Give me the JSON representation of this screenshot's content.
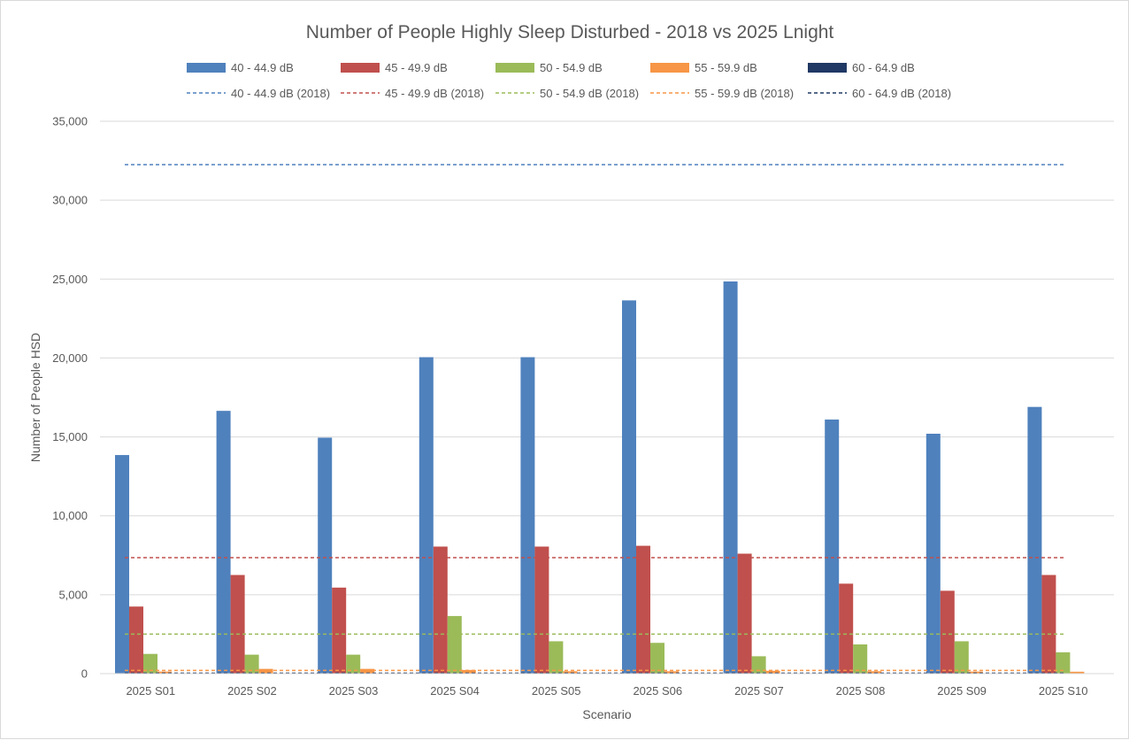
{
  "chart_data": {
    "type": "bar",
    "title": "Number of People Highly Sleep Disturbed - 2018 vs 2025 Lnight",
    "xlabel": "Scenario",
    "ylabel": "Number of People HSD",
    "ylim": [
      0,
      35000
    ],
    "yticks": [
      0,
      5000,
      10000,
      15000,
      20000,
      25000,
      30000,
      35000
    ],
    "ytick_labels": [
      "0",
      "5,000",
      "10,000",
      "15,000",
      "20,000",
      "25,000",
      "30,000",
      "35,000"
    ],
    "grid": true,
    "legend_position": "top",
    "categories": [
      "2025 S01",
      "2025 S02",
      "2025 S03",
      "2025 S04",
      "2025 S05",
      "2025 S06",
      "2025 S07",
      "2025 S08",
      "2025 S09",
      "2025 S10"
    ],
    "series": [
      {
        "name": "40 - 44.9 dB",
        "color": "#4F81BD",
        "values": [
          13850,
          16650,
          14950,
          20050,
          20050,
          23650,
          24850,
          16100,
          15200,
          16900
        ]
      },
      {
        "name": "45 - 49.9 dB",
        "color": "#C0504D",
        "values": [
          4250,
          6250,
          5450,
          8050,
          8050,
          8100,
          7600,
          5700,
          5250,
          6250
        ]
      },
      {
        "name": "50 - 54.9 dB",
        "color": "#9BBB59",
        "values": [
          1250,
          1200,
          1200,
          3650,
          2050,
          1950,
          1100,
          1850,
          2050,
          1350
        ]
      },
      {
        "name": "55 - 59.9 dB",
        "color": "#F79646",
        "values": [
          130,
          300,
          300,
          230,
          150,
          150,
          180,
          150,
          130,
          120
        ]
      },
      {
        "name": "60 - 64.9 dB",
        "color": "#1F3864",
        "values": [
          15,
          15,
          15,
          15,
          15,
          15,
          15,
          15,
          15,
          15
        ]
      }
    ],
    "reference_lines": [
      {
        "name": "40 - 44.9 dB (2018)",
        "color": "#4F81BD",
        "value": 32250
      },
      {
        "name": "45 - 49.9 dB (2018)",
        "color": "#C0504D",
        "value": 7350
      },
      {
        "name": "50 - 54.9 dB (2018)",
        "color": "#9BBB59",
        "value": 2500
      },
      {
        "name": "55 - 59.9 dB (2018)",
        "color": "#F79646",
        "value": 200
      },
      {
        "name": "60 - 64.9 dB (2018)",
        "color": "#1F3864",
        "value": 30
      }
    ]
  }
}
